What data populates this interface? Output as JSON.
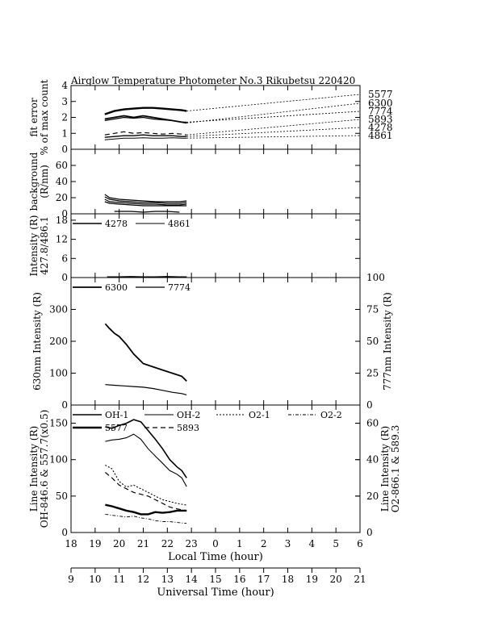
{
  "title": "Airglow Temperature Photometer No.3   Rikubetsu    220420",
  "x_axes": {
    "local": {
      "label": "Local Time (hour)",
      "ticks": [
        "18",
        "19",
        "20",
        "21",
        "22",
        "23",
        "0",
        "1",
        "2",
        "3",
        "4",
        "5",
        "6"
      ]
    },
    "universal": {
      "label": "Universal Time (hour)",
      "ticks": [
        "9",
        "10",
        "11",
        "12",
        "13",
        "14",
        "15",
        "16",
        "17",
        "18",
        "19",
        "20",
        "21"
      ]
    }
  },
  "chart_data": [
    {
      "id": "fit_error",
      "type": "line",
      "ylabel": [
        "fit error",
        "% of max count"
      ],
      "ylim": [
        0,
        4
      ],
      "yticks": [
        "0",
        "1",
        "2",
        "3",
        "4"
      ],
      "right_labels": [
        "5577",
        "6300",
        "7774",
        "5893",
        "4278",
        "4861"
      ],
      "series": [
        {
          "name": "5577",
          "x": [
            19.4,
            19.8,
            20.2,
            20.6,
            21.0,
            21.4,
            21.8,
            22.2,
            22.6,
            22.8
          ],
          "y": [
            2.2,
            2.4,
            2.5,
            2.55,
            2.6,
            2.6,
            2.55,
            2.5,
            2.45,
            2.4
          ]
        },
        {
          "name": "6300",
          "x": [
            19.4,
            19.8,
            20.2,
            20.6,
            21.0,
            21.4,
            21.8,
            22.2,
            22.6,
            22.8
          ],
          "y": [
            1.9,
            2.0,
            2.1,
            2.0,
            2.1,
            2.0,
            1.9,
            1.8,
            1.7,
            1.65
          ]
        },
        {
          "name": "7774",
          "x": [
            19.4,
            19.8,
            20.2,
            20.6,
            21.0,
            21.4,
            21.8,
            22.2,
            22.6,
            22.8
          ],
          "y": [
            1.8,
            1.9,
            2.0,
            1.95,
            2.0,
            1.9,
            1.85,
            1.8,
            1.7,
            1.7
          ]
        },
        {
          "name": "5893",
          "x": [
            19.4,
            19.8,
            20.2,
            20.6,
            21.0,
            21.4,
            21.8,
            22.2,
            22.6,
            22.8
          ],
          "y": [
            0.9,
            1.0,
            1.1,
            1.0,
            1.05,
            1.0,
            0.95,
            1.0,
            0.95,
            0.9
          ]
        },
        {
          "name": "4278",
          "x": [
            19.4,
            19.8,
            20.2,
            20.6,
            21.0,
            21.4,
            21.8,
            22.2,
            22.6,
            22.8
          ],
          "y": [
            0.75,
            0.8,
            0.85,
            0.85,
            0.9,
            0.85,
            0.85,
            0.85,
            0.8,
            0.8
          ]
        },
        {
          "name": "4861",
          "x": [
            19.4,
            19.8,
            20.2,
            20.6,
            21.0,
            21.4,
            21.8,
            22.2,
            22.6,
            22.8
          ],
          "y": [
            0.6,
            0.65,
            0.7,
            0.7,
            0.72,
            0.7,
            0.7,
            0.72,
            0.7,
            0.7
          ]
        }
      ]
    },
    {
      "id": "background",
      "type": "line",
      "ylabel": [
        "background",
        "(R/nm)"
      ],
      "ylim": [
        0,
        80
      ],
      "yticks": [
        "0",
        "20",
        "40",
        "60"
      ],
      "series": [
        {
          "x": [
            19.4,
            19.6,
            20.0,
            20.5,
            21.0,
            21.5,
            22.0,
            22.5,
            22.8
          ],
          "y": [
            24,
            20,
            18,
            17,
            16,
            15,
            15,
            15,
            16
          ]
        },
        {
          "x": [
            19.4,
            19.6,
            20.0,
            20.5,
            21.0,
            21.5,
            22.0,
            22.5,
            22.8
          ],
          "y": [
            21,
            18,
            16,
            15,
            14,
            14,
            13,
            13,
            14
          ]
        },
        {
          "x": [
            19.4,
            19.6,
            20.0,
            20.5,
            21.0,
            21.5,
            22.0,
            22.5,
            22.8
          ],
          "y": [
            18,
            15,
            14,
            13,
            12,
            12,
            11,
            11,
            12
          ]
        },
        {
          "x": [
            19.4,
            19.6,
            20.0,
            20.5,
            21.0,
            21.5,
            22.0,
            22.5,
            22.8
          ],
          "y": [
            15,
            13,
            12,
            11,
            10,
            10,
            10,
            10,
            10
          ]
        },
        {
          "x": [
            19.8,
            20.5,
            21.0,
            21.5,
            22.0,
            22.5
          ],
          "y": [
            3,
            3,
            2,
            3,
            3,
            2
          ]
        }
      ]
    },
    {
      "id": "intensity_4278_4861",
      "type": "line",
      "ylabel": [
        "Intensity (R)",
        "427.8/486.1"
      ],
      "ylim": [
        0,
        20
      ],
      "yticks": [
        "0",
        "6",
        "12",
        "18"
      ],
      "legend": [
        "4278",
        "4861"
      ],
      "series": [
        {
          "name": "4278",
          "x": [
            19.5,
            20.0,
            20.5,
            21.0,
            21.5,
            22.0,
            22.5,
            22.8
          ],
          "y": [
            0.2,
            0.2,
            0.3,
            0.2,
            0.2,
            0.3,
            0.2,
            0.2
          ]
        },
        {
          "name": "4861",
          "x": [
            19.5,
            20.0,
            20.5,
            21.0,
            21.5,
            22.0,
            22.5,
            22.8
          ],
          "y": [
            0.1,
            0.1,
            0.2,
            0.1,
            0.1,
            0.2,
            0.1,
            0.1
          ]
        }
      ]
    },
    {
      "id": "intensity_630_777",
      "type": "line",
      "ylabel": "630nm Intensity (R)",
      "ylabel_right": "777nm Intensity (R)",
      "ylim": [
        0,
        400
      ],
      "ylim_right": [
        0,
        100
      ],
      "yticks": [
        "0",
        "100",
        "200",
        "300"
      ],
      "yticks_right": [
        "0",
        "25",
        "50",
        "75",
        "100"
      ],
      "legend": [
        "6300",
        "7774"
      ],
      "series": [
        {
          "name": "6300",
          "axis": "left",
          "x": [
            19.42,
            19.6,
            19.8,
            20.0,
            20.3,
            20.6,
            21.0,
            21.4,
            21.8,
            22.2,
            22.6,
            22.8
          ],
          "y": [
            255,
            240,
            225,
            215,
            190,
            160,
            130,
            120,
            110,
            100,
            90,
            75
          ]
        },
        {
          "name": "7774",
          "axis": "right",
          "x": [
            19.42,
            19.8,
            20.2,
            20.6,
            21.0,
            21.4,
            21.8,
            22.2,
            22.6,
            22.8
          ],
          "y": [
            16,
            15.5,
            15,
            14.5,
            14,
            13,
            11.5,
            10,
            9,
            8
          ]
        }
      ]
    },
    {
      "id": "line_intensity",
      "type": "line",
      "ylabel": [
        "Line Intensity (R)",
        "OH-846.6 & 557.7(x0.5)"
      ],
      "ylabel_right": [
        "Line Intensity (R)",
        "O2-866.1 & 589.3"
      ],
      "ylim": [
        0,
        175
      ],
      "ylim_right": [
        0,
        70
      ],
      "yticks": [
        "0",
        "50",
        "100",
        "150"
      ],
      "yticks_right": [
        "0",
        "20",
        "40",
        "60"
      ],
      "legend": [
        "OH-1",
        "OH-2",
        "O2-1",
        "O2-2",
        "5577",
        "5893"
      ],
      "series": [
        {
          "name": "OH-1",
          "axis": "left",
          "x": [
            19.42,
            19.7,
            20.0,
            20.3,
            20.6,
            20.9,
            21.2,
            21.5,
            21.8,
            22.1,
            22.4,
            22.6,
            22.8
          ],
          "y": [
            145,
            143,
            147,
            150,
            155,
            152,
            140,
            128,
            115,
            100,
            90,
            85,
            75
          ]
        },
        {
          "name": "OH-2",
          "axis": "left",
          "x": [
            19.42,
            19.7,
            20.0,
            20.3,
            20.6,
            20.9,
            21.2,
            21.5,
            21.8,
            22.1,
            22.4,
            22.6,
            22.8
          ],
          "y": [
            125,
            127,
            128,
            130,
            135,
            128,
            115,
            105,
            95,
            85,
            80,
            75,
            63
          ]
        },
        {
          "name": "O2-1",
          "axis": "right",
          "x": [
            19.42,
            19.7,
            20.0,
            20.3,
            20.6,
            20.9,
            21.2,
            21.5,
            21.8,
            22.1,
            22.4,
            22.8
          ],
          "y": [
            37,
            35,
            28,
            25,
            26,
            24,
            22,
            20,
            18,
            17,
            16,
            15
          ]
        },
        {
          "name": "O2-2",
          "axis": "right",
          "x": [
            19.42,
            19.7,
            20.0,
            20.3,
            20.6,
            20.9,
            21.2,
            21.5,
            21.8,
            22.1,
            22.4,
            22.8
          ],
          "y": [
            10,
            9.5,
            9,
            8.5,
            9,
            8,
            7.5,
            6.5,
            6,
            6,
            5.5,
            5
          ]
        },
        {
          "name": "5577",
          "axis": "left",
          "x": [
            19.42,
            19.7,
            20.0,
            20.3,
            20.6,
            20.9,
            21.2,
            21.5,
            21.8,
            22.1,
            22.4,
            22.8
          ],
          "y": [
            38,
            36,
            33,
            30,
            28,
            25,
            25,
            28,
            27,
            28,
            30,
            30
          ]
        },
        {
          "name": "5893",
          "axis": "right",
          "x": [
            19.42,
            19.7,
            20.0,
            20.3,
            20.6,
            20.9,
            21.2,
            21.5,
            21.8,
            22.1,
            22.4,
            22.8
          ],
          "y": [
            33,
            30,
            26,
            24,
            22,
            21,
            20,
            18,
            16,
            14,
            13,
            12
          ]
        }
      ]
    }
  ]
}
